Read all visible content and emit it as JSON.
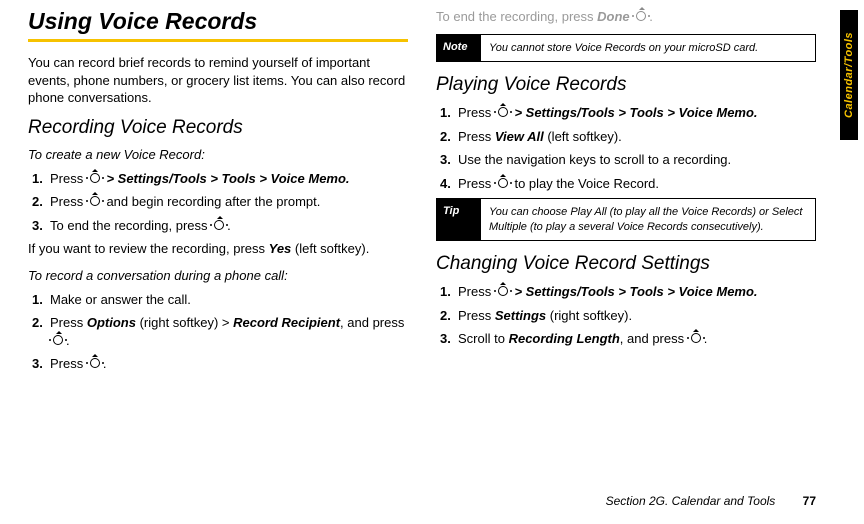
{
  "sideTab": "Calendar/Tools",
  "footer": {
    "section": "Section 2G. Calendar and Tools",
    "page": "77"
  },
  "left": {
    "h1": "Using Voice Records",
    "intro": "You can record brief records to remind yourself of important events, phone numbers, or grocery list items. You can also record phone conversations.",
    "h2": "Recording Voice Records",
    "lead1": "To create a new Voice Record:",
    "s1": {
      "pre": "Press ",
      "path": " > Settings/Tools > Tools > Voice Memo."
    },
    "s2": {
      "pre": "Press ",
      "post": " and begin recording after the prompt."
    },
    "s3": {
      "pre": "To end the recording, press ",
      "post": "."
    },
    "review": {
      "pre": "If you want to review the recording, press ",
      "yes": "Yes",
      "post": " (left softkey)."
    },
    "lead2": "To record a conversation during a phone call:",
    "c1": "Make or answer the call.",
    "c2": {
      "pre": "Press ",
      "opt": "Options",
      "mid": " (right softkey) > ",
      "rec": "Record Recipient",
      "mid2": ", and press ",
      "post": "."
    },
    "c3": {
      "pre": "Press ",
      "post": "."
    }
  },
  "right": {
    "faint": {
      "pre": "To end the recording, press ",
      "done": "Done",
      "post": " ",
      "tail": "."
    },
    "note": {
      "label": "Note",
      "text": "You cannot store Voice Records on your microSD card."
    },
    "h2a": "Playing Voice Records",
    "p1": {
      "pre": "Press ",
      "path": " > Settings/Tools >  Tools > Voice Memo."
    },
    "p2": {
      "pre": "Press ",
      "va": "View All",
      "post": " (left softkey)."
    },
    "p3": "Use the navigation keys to scroll to a recording.",
    "p4": {
      "pre": "Press ",
      "post": " to play the Voice Record."
    },
    "tip": {
      "label": "Tip",
      "text": "You can choose Play All (to play all the Voice Records) or Select Multiple (to play a several Voice Records consecutively)."
    },
    "h2b": "Changing Voice Record Settings",
    "g1": {
      "pre": "Press ",
      "path": " > Settings/Tools > Tools > Voice Memo."
    },
    "g2": {
      "pre": "Press ",
      "set": "Settings",
      "post": " (right softkey)."
    },
    "g3": {
      "pre": "Scroll to ",
      "rl": "Recording Length",
      "mid": ", and press ",
      "post": "."
    }
  }
}
